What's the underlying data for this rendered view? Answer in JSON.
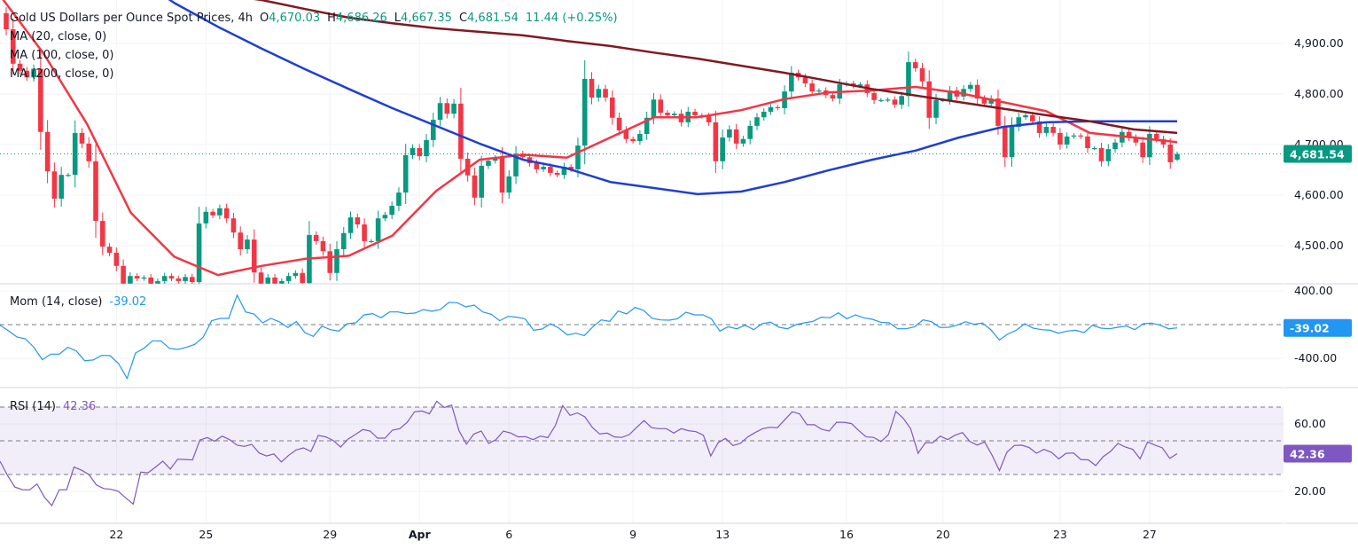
{
  "header": {
    "title": "Gold US Dollars per Ounce Spot Prices, 4h",
    "o_label": "O",
    "o_value": "4,670.03",
    "h_label": "H",
    "h_value": "4,686.26",
    "l_label": "L",
    "l_value": "4,667.35",
    "c_label": "C",
    "c_value": "4,681.54",
    "change": "11.44 (+0.25%)"
  },
  "indicators": {
    "ma20_label": "MA (20, close, 0)",
    "ma100_label": "MA (100, close, 0)",
    "ma200_label": "MA (200, close, 0)",
    "mom_label": "Mom (14, close)",
    "mom_value": "-39.02",
    "rsi_label": "RSI (14)",
    "rsi_value": "42.36"
  },
  "colors": {
    "up": "#089981",
    "down": "#f23645",
    "ma20": "#f23645",
    "ma100": "#1f3fcf",
    "ma200": "#801922",
    "mom": "#2196f3",
    "rsi": "#7e57c2"
  },
  "chart_data": [
    {
      "type": "candlestick",
      "pane": "price",
      "interval": "4h",
      "ylim": [
        4425,
        4990
      ],
      "y_ticks": [
        "4,900.00",
        "4,800.00",
        "4,700.00",
        "4,600.00",
        "4,500.00"
      ],
      "y_tick_values": [
        4900,
        4800,
        4700,
        4600,
        4500
      ],
      "last_price_label": "4,681.54",
      "last_price": 4681.54,
      "x_ticks": [
        {
          "label": "22",
          "bar": 16
        },
        {
          "label": "25",
          "bar": 29
        },
        {
          "label": "29",
          "bar": 47
        },
        {
          "label": "Apr",
          "bar": 60
        },
        {
          "label": "6",
          "bar": 73
        },
        {
          "label": "9",
          "bar": 91
        },
        {
          "label": "13",
          "bar": 104
        },
        {
          "label": "16",
          "bar": 122
        },
        {
          "label": "20",
          "bar": 136
        },
        {
          "label": "23",
          "bar": 153
        },
        {
          "label": "27",
          "bar": 166
        }
      ],
      "first_open": 4960,
      "last_candle": {
        "open": 4670.03,
        "high": 4686.26,
        "low": 4667.35,
        "close": 4681.54
      },
      "closes": [
        4928,
        4860,
        4846,
        4833,
        4850,
        4725,
        4647,
        4593,
        4640,
        4640,
        4723,
        4702,
        4667,
        4549,
        4498,
        4486,
        4460,
        4425,
        4440,
        4435,
        4437,
        4425,
        4430,
        4440,
        4435,
        4430,
        4438,
        4428,
        4544,
        4567,
        4560,
        4574,
        4554,
        4526,
        4493,
        4512,
        4447,
        4425,
        4437,
        4425,
        4430,
        4440,
        4446,
        4426,
        4521,
        4509,
        4489,
        4446,
        4493,
        4525,
        4556,
        4542,
        4509,
        4509,
        4554,
        4561,
        4579,
        4605,
        4679,
        4693,
        4677,
        4709,
        4749,
        4782,
        4761,
        4781,
        4672,
        4639,
        4595,
        4658,
        4668,
        4674,
        4605,
        4637,
        4682,
        4675,
        4663,
        4651,
        4656,
        4644,
        4640,
        4656,
        4651,
        4698,
        4830,
        4793,
        4810,
        4793,
        4753,
        4728,
        4711,
        4707,
        4721,
        4753,
        4789,
        4763,
        4758,
        4761,
        4744,
        4765,
        4758,
        4756,
        4744,
        4667,
        4714,
        4730,
        4702,
        4711,
        4737,
        4754,
        4765,
        4774,
        4772,
        4805,
        4842,
        4833,
        4821,
        4805,
        4807,
        4798,
        4791,
        4819,
        4821,
        4816,
        4819,
        4802,
        4788,
        4788,
        4789,
        4779,
        4796,
        4863,
        4851,
        4825,
        4753,
        4788,
        4788,
        4807,
        4795,
        4810,
        4818,
        4791,
        4781,
        4791,
        4737,
        4675,
        4735,
        4754,
        4758,
        4746,
        4723,
        4735,
        4723,
        4700,
        4716,
        4718,
        4716,
        4693,
        4693,
        4667,
        4691,
        4704,
        4725,
        4714,
        4704,
        4675,
        4721,
        4711,
        4700,
        4665,
        4681.54
      ],
      "moving_averages": [
        {
          "name": "MA (20, close, 0)",
          "values": [
            4995,
            4880,
            4740,
            4565,
            4478,
            4442,
            4460,
            4474,
            4480,
            4520,
            4608,
            4670,
            4680,
            4674,
            4714,
            4754,
            4754,
            4768,
            4790,
            4803,
            4807,
            4814,
            4802,
            4784,
            4766,
            4723,
            4714,
            4705
          ]
        },
        {
          "name": "MA (100, close, 0)",
          "values": [
            5190,
            5140,
            5090,
            5040,
            4980,
            4933,
            4890,
            4849,
            4810,
            4772,
            4737,
            4702,
            4670,
            4653,
            4626,
            4614,
            4602,
            4607,
            4626,
            4649,
            4670,
            4688,
            4714,
            4735,
            4744,
            4746,
            4746,
            4746
          ]
        },
        {
          "name": "MA (200, close, 0)",
          "values": [
            5060,
            5048,
            5035,
            5022,
            5010,
            4998,
            4986,
            4968,
            4951,
            4940,
            4930,
            4923,
            4916,
            4905,
            4895,
            4882,
            4870,
            4856,
            4842,
            4826,
            4810,
            4797,
            4784,
            4771,
            4758,
            4746,
            4730,
            4723
          ]
        }
      ]
    },
    {
      "type": "line",
      "pane": "momentum",
      "name": "Mom (14, close)",
      "ylim": [
        -500,
        480
      ],
      "y_ticks": [
        "400.00",
        "-400.00"
      ],
      "y_tick_values": [
        400,
        -400
      ],
      "zero_line": 0,
      "last_value": -39.02,
      "values": [
        -7,
        -74,
        -147,
        -168,
        -270,
        -417,
        -350,
        -350,
        -270,
        -312,
        -428,
        -420,
        -365,
        -368,
        -463,
        -639,
        -337,
        -281,
        -193,
        -193,
        -281,
        -295,
        -270,
        -235,
        -147,
        46,
        74,
        74,
        351,
        151,
        126,
        21,
        74,
        33,
        -35,
        37,
        -95,
        -140,
        -18,
        -60,
        -77,
        11,
        21,
        116,
        130,
        81,
        151,
        151,
        130,
        137,
        179,
        158,
        179,
        263,
        260,
        211,
        232,
        151,
        123,
        46,
        98,
        88,
        70,
        -67,
        -53,
        11,
        -42,
        -123,
        -102,
        -130,
        -25,
        56,
        39,
        161,
        126,
        204,
        168,
        74,
        56,
        53,
        70,
        147,
        116,
        116,
        70,
        -77,
        -25,
        -49,
        -7,
        -60,
        11,
        28,
        -32,
        -49,
        0,
        21,
        39,
        88,
        81,
        140,
        70,
        116,
        81,
        63,
        28,
        21,
        -49,
        -49,
        -25,
        56,
        35,
        -35,
        -32,
        -7,
        35,
        4,
        18,
        -60,
        -183,
        -112,
        -67,
        11,
        -42,
        -60,
        -67,
        -102,
        -77,
        -67,
        -95,
        -7,
        -42,
        -49,
        -32,
        -18,
        -60,
        11,
        18,
        -7,
        -49,
        -39.02
      ]
    },
    {
      "type": "line",
      "pane": "rsi",
      "name": "RSI (14)",
      "ylim": [
        5,
        82
      ],
      "y_ticks": [
        "60.00",
        "20.00"
      ],
      "y_tick_values": [
        60,
        20
      ],
      "bands": [
        70,
        50,
        30
      ],
      "last_value": 42.36,
      "values": [
        37.9,
        29.5,
        22.6,
        21,
        20.9,
        24.4,
        16.5,
        11.6,
        20.9,
        21,
        34.4,
        32.6,
        30,
        23.9,
        21.7,
        21.2,
        20,
        16,
        12.5,
        31.4,
        31,
        34.4,
        37.9,
        33.2,
        39.1,
        38.9,
        38.7,
        50.5,
        51.9,
        49.8,
        52.8,
        50.7,
        47.5,
        46.7,
        47.9,
        42.8,
        41,
        42.2,
        37.4,
        41.4,
        44.6,
        45.8,
        43.7,
        53.2,
        52.3,
        50.2,
        46.3,
        51,
        53.7,
        56.7,
        55.8,
        51.6,
        51.6,
        56.3,
        57.2,
        61,
        67.2,
        67.7,
        66,
        73.5,
        69.8,
        71.2,
        56,
        48,
        54,
        55.8,
        48.4,
        50.7,
        55.8,
        54.6,
        52.3,
        52.5,
        50.7,
        52.8,
        51.9,
        59,
        70.9,
        65.1,
        66.5,
        64.2,
        58,
        54,
        54.6,
        52.3,
        52,
        53.7,
        58,
        62,
        57.8,
        57.2,
        57.2,
        54.6,
        57.2,
        56,
        55.4,
        53.3,
        41,
        48.9,
        51.4,
        47.2,
        48.4,
        52.3,
        54.9,
        57.2,
        58,
        57.8,
        62.5,
        67.2,
        66,
        59.5,
        59.5,
        56.8,
        55.8,
        61,
        61,
        60.2,
        56,
        52.3,
        52,
        49.5,
        53.7,
        67.5,
        63.3,
        57.2,
        42.6,
        48.9,
        48.9,
        52.8,
        50.7,
        53.3,
        54.9,
        49.6,
        47.5,
        49.3,
        41.4,
        32.3,
        43.2,
        47.2,
        47.4,
        46,
        42.6,
        44.9,
        43.2,
        39.3,
        42.6,
        42.8,
        38.9,
        38.7,
        35.3,
        40.5,
        43.7,
        48.4,
        46.3,
        44.9,
        39.3,
        49.3,
        47.5,
        45.8,
        39.6,
        42.36
      ]
    }
  ]
}
